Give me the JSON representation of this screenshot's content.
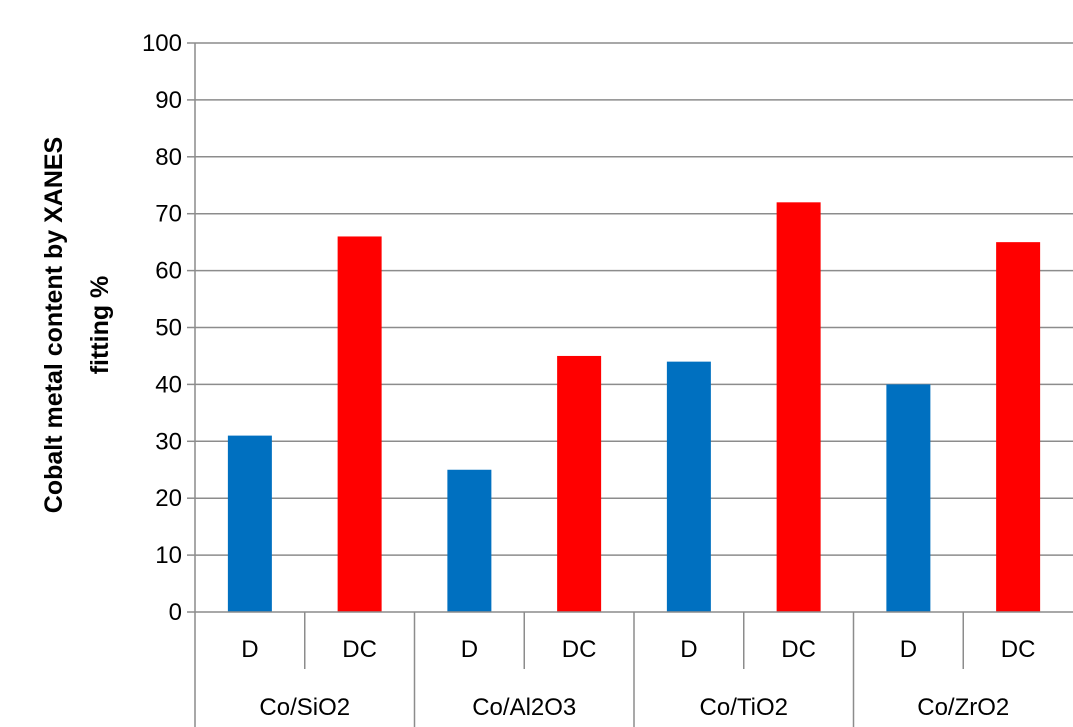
{
  "chart_data": {
    "type": "bar",
    "title": "",
    "xlabel": "",
    "ylabel": [
      "Cobalt metal content by XANES",
      "fitting %"
    ],
    "ylim": [
      0,
      100
    ],
    "yticks": [
      0,
      10,
      20,
      30,
      40,
      50,
      60,
      70,
      80,
      90,
      100
    ],
    "grid": true,
    "legend": "none",
    "groups": [
      "Co/SiO2",
      "Co/Al2O3",
      "Co/TiO2",
      "Co/ZrO2"
    ],
    "subcategories": [
      "D",
      "DC"
    ],
    "bars": [
      {
        "group": "Co/SiO2",
        "sub": "D",
        "value": 31,
        "color": "#0070C0"
      },
      {
        "group": "Co/SiO2",
        "sub": "DC",
        "value": 66,
        "color": "#FF0000"
      },
      {
        "group": "Co/Al2O3",
        "sub": "D",
        "value": 25,
        "color": "#0070C0"
      },
      {
        "group": "Co/Al2O3",
        "sub": "DC",
        "value": 45,
        "color": "#FF0000"
      },
      {
        "group": "Co/TiO2",
        "sub": "D",
        "value": 44,
        "color": "#0070C0"
      },
      {
        "group": "Co/TiO2",
        "sub": "DC",
        "value": 72,
        "color": "#FF0000"
      },
      {
        "group": "Co/ZrO2",
        "sub": "D",
        "value": 40,
        "color": "#0070C0"
      },
      {
        "group": "Co/ZrO2",
        "sub": "DC",
        "value": 65,
        "color": "#FF0000"
      }
    ]
  }
}
